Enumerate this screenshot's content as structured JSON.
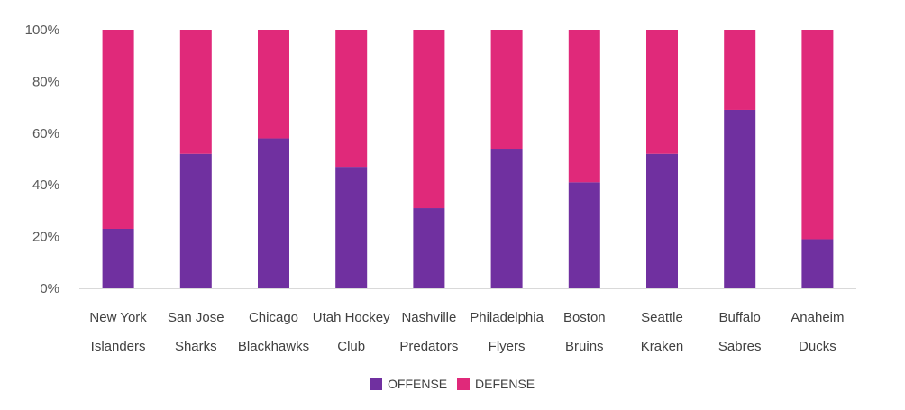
{
  "chart_data": {
    "type": "bar",
    "stacked": true,
    "percent_stacked": true,
    "categories": [
      [
        "New York",
        "Islanders"
      ],
      [
        "San Jose",
        "Sharks"
      ],
      [
        "Chicago",
        "Blackhawks"
      ],
      [
        "Utah Hockey",
        "Club"
      ],
      [
        "Nashville",
        "Predators"
      ],
      [
        "Philadelphia",
        "Flyers"
      ],
      [
        "Boston",
        "Bruins"
      ],
      [
        "Seattle",
        "Kraken"
      ],
      [
        "Buffalo",
        "Sabres"
      ],
      [
        "Anaheim",
        "Ducks"
      ]
    ],
    "series": [
      {
        "name": "OFFENSE",
        "color": "#7030a0",
        "values": [
          23,
          52,
          58,
          47,
          31,
          54,
          41,
          52,
          69,
          19
        ]
      },
      {
        "name": "DEFENSE",
        "color": "#e0297a",
        "values": [
          77,
          48,
          42,
          53,
          69,
          46,
          59,
          48,
          31,
          81
        ]
      }
    ],
    "y_ticks": [
      "0%",
      "20%",
      "40%",
      "60%",
      "80%",
      "100%"
    ],
    "ylim": [
      0,
      100
    ],
    "legend_position": "bottom",
    "grid": false,
    "title": "",
    "xlabel": "",
    "ylabel": ""
  }
}
